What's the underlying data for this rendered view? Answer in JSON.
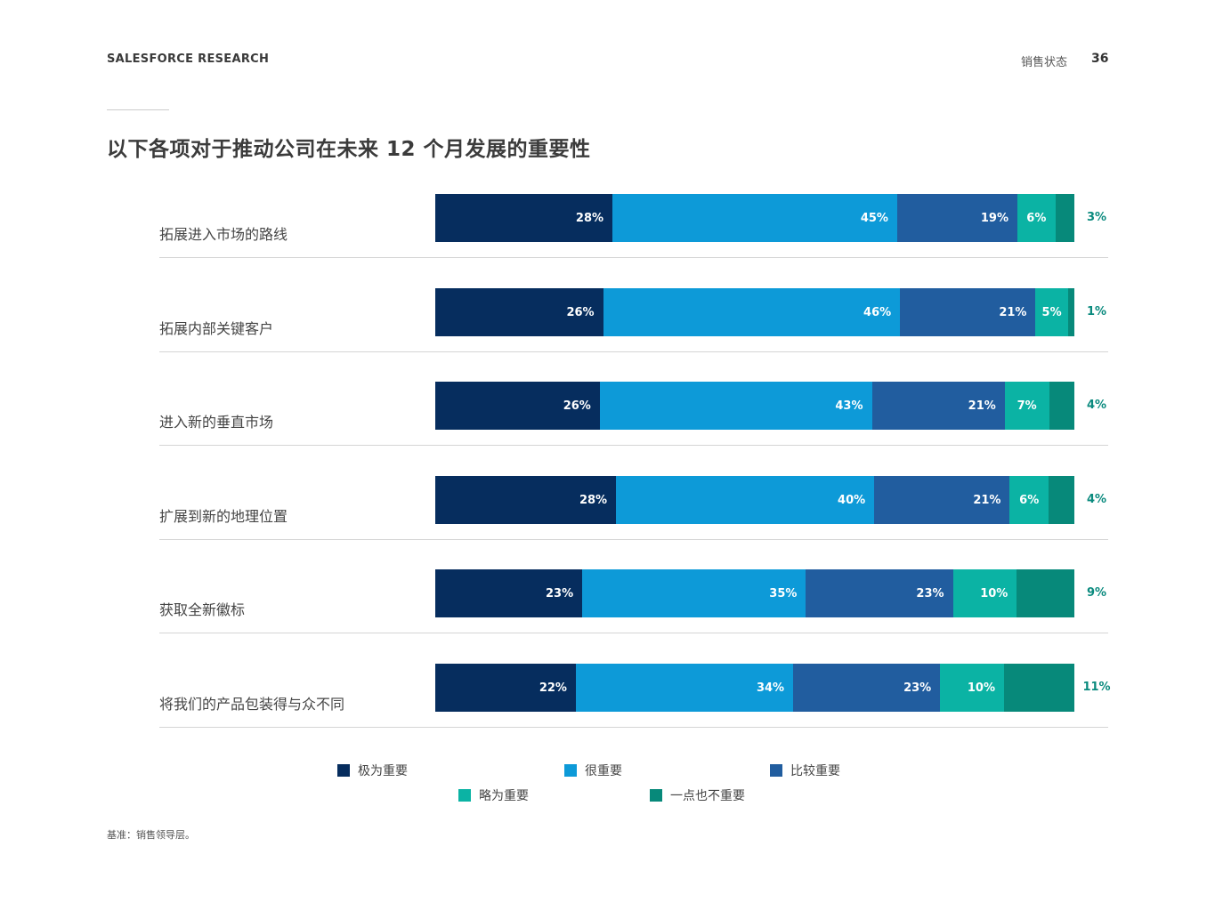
{
  "header": {
    "brand": "SALESFORCE RESEARCH",
    "section": "销售状态",
    "page_number": "36"
  },
  "title": "以下各项对于推动公司在未来 12 个月发展的重要性",
  "colors": {
    "extremely_important": "#062d5e",
    "very_important": "#0d9ad8",
    "fairly_important": "#215d9f",
    "slightly_important": "#0bb3a4",
    "not_important": "#07897a",
    "outside_label": "#0a8a7e"
  },
  "chart_data": {
    "type": "bar",
    "orientation": "horizontal",
    "stacked": true,
    "title": "以下各项对于推动公司在未来 12 个月发展的重要性",
    "xlabel": "",
    "ylabel": "",
    "xlim": [
      0,
      100
    ],
    "categories": [
      "拓展进入市场的路线",
      "拓展内部关键客户",
      "进入新的垂直市场",
      "扩展到新的地理位置",
      "获取全新徽标",
      "将我们的产品包装得与众不同"
    ],
    "series": [
      {
        "name": "极为重要",
        "values": [
          28,
          26,
          26,
          28,
          23,
          22
        ]
      },
      {
        "name": "很重要",
        "values": [
          45,
          46,
          43,
          40,
          35,
          34
        ]
      },
      {
        "name": "比较重要",
        "values": [
          19,
          21,
          21,
          21,
          23,
          23
        ]
      },
      {
        "name": "略为重要",
        "values": [
          6,
          5,
          7,
          6,
          10,
          10
        ]
      },
      {
        "name": "一点也不重要",
        "values": [
          3,
          1,
          4,
          4,
          9,
          11
        ]
      }
    ],
    "legend_position": "bottom"
  },
  "footnote": "基准：销售领导层。"
}
